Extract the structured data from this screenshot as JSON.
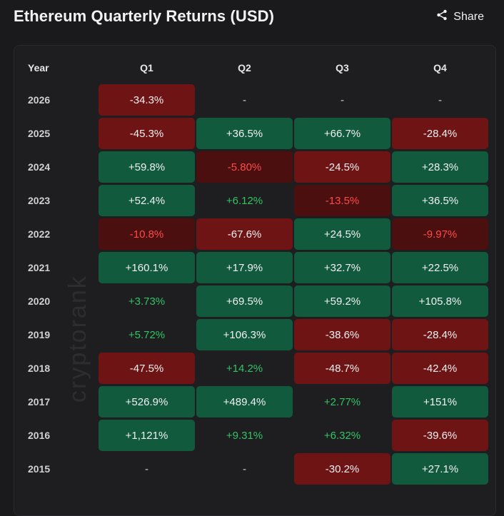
{
  "header": {
    "title": "Ethereum Quarterly Returns (USD)",
    "share_label": "Share"
  },
  "watermark": "cryptorank",
  "chart_data": {
    "type": "table",
    "columns": [
      "Year",
      "Q1",
      "Q2",
      "Q3",
      "Q4"
    ],
    "rows": [
      {
        "year": "2026",
        "cells": [
          {
            "text": "-34.3%",
            "value": -34.3,
            "style": "neg-strong"
          },
          {
            "text": "-",
            "value": null,
            "style": "empty"
          },
          {
            "text": "-",
            "value": null,
            "style": "empty"
          },
          {
            "text": "-",
            "value": null,
            "style": "empty"
          }
        ]
      },
      {
        "year": "2025",
        "cells": [
          {
            "text": "-45.3%",
            "value": -45.3,
            "style": "neg-strong"
          },
          {
            "text": "+36.5%",
            "value": 36.5,
            "style": "pos-strong"
          },
          {
            "text": "+66.7%",
            "value": 66.7,
            "style": "pos-strong"
          },
          {
            "text": "-28.4%",
            "value": -28.4,
            "style": "neg-strong"
          }
        ]
      },
      {
        "year": "2024",
        "cells": [
          {
            "text": "+59.8%",
            "value": 59.8,
            "style": "pos-strong"
          },
          {
            "text": "-5.80%",
            "value": -5.8,
            "style": "neg-mid"
          },
          {
            "text": "-24.5%",
            "value": -24.5,
            "style": "neg-strong"
          },
          {
            "text": "+28.3%",
            "value": 28.3,
            "style": "pos-strong"
          }
        ]
      },
      {
        "year": "2023",
        "cells": [
          {
            "text": "+52.4%",
            "value": 52.4,
            "style": "pos-strong"
          },
          {
            "text": "+6.12%",
            "value": 6.12,
            "style": "pos-weak"
          },
          {
            "text": "-13.5%",
            "value": -13.5,
            "style": "neg-mid"
          },
          {
            "text": "+36.5%",
            "value": 36.5,
            "style": "pos-strong"
          }
        ]
      },
      {
        "year": "2022",
        "cells": [
          {
            "text": "-10.8%",
            "value": -10.8,
            "style": "neg-mid"
          },
          {
            "text": "-67.6%",
            "value": -67.6,
            "style": "neg-strong"
          },
          {
            "text": "+24.5%",
            "value": 24.5,
            "style": "pos-strong"
          },
          {
            "text": "-9.97%",
            "value": -9.97,
            "style": "neg-mid"
          }
        ]
      },
      {
        "year": "2021",
        "cells": [
          {
            "text": "+160.1%",
            "value": 160.1,
            "style": "pos-strong"
          },
          {
            "text": "+17.9%",
            "value": 17.9,
            "style": "pos-strong"
          },
          {
            "text": "+32.7%",
            "value": 32.7,
            "style": "pos-strong"
          },
          {
            "text": "+22.5%",
            "value": 22.5,
            "style": "pos-strong"
          }
        ]
      },
      {
        "year": "2020",
        "cells": [
          {
            "text": "+3.73%",
            "value": 3.73,
            "style": "pos-weak"
          },
          {
            "text": "+69.5%",
            "value": 69.5,
            "style": "pos-strong"
          },
          {
            "text": "+59.2%",
            "value": 59.2,
            "style": "pos-strong"
          },
          {
            "text": "+105.8%",
            "value": 105.8,
            "style": "pos-strong"
          }
        ]
      },
      {
        "year": "2019",
        "cells": [
          {
            "text": "+5.72%",
            "value": 5.72,
            "style": "pos-weak"
          },
          {
            "text": "+106.3%",
            "value": 106.3,
            "style": "pos-strong"
          },
          {
            "text": "-38.6%",
            "value": -38.6,
            "style": "neg-strong"
          },
          {
            "text": "-28.4%",
            "value": -28.4,
            "style": "neg-strong"
          }
        ]
      },
      {
        "year": "2018",
        "cells": [
          {
            "text": "-47.5%",
            "value": -47.5,
            "style": "neg-strong"
          },
          {
            "text": "+14.2%",
            "value": 14.2,
            "style": "pos-weak"
          },
          {
            "text": "-48.7%",
            "value": -48.7,
            "style": "neg-strong"
          },
          {
            "text": "-42.4%",
            "value": -42.4,
            "style": "neg-strong"
          }
        ]
      },
      {
        "year": "2017",
        "cells": [
          {
            "text": "+526.9%",
            "value": 526.9,
            "style": "pos-strong"
          },
          {
            "text": "+489.4%",
            "value": 489.4,
            "style": "pos-strong"
          },
          {
            "text": "+2.77%",
            "value": 2.77,
            "style": "pos-weak"
          },
          {
            "text": "+151%",
            "value": 151,
            "style": "pos-strong"
          }
        ]
      },
      {
        "year": "2016",
        "cells": [
          {
            "text": "+1,121%",
            "value": 1121,
            "style": "pos-strong"
          },
          {
            "text": "+9.31%",
            "value": 9.31,
            "style": "pos-weak"
          },
          {
            "text": "+6.32%",
            "value": 6.32,
            "style": "pos-weak"
          },
          {
            "text": "-39.6%",
            "value": -39.6,
            "style": "neg-strong"
          }
        ]
      },
      {
        "year": "2015",
        "cells": [
          {
            "text": "-",
            "value": null,
            "style": "empty"
          },
          {
            "text": "-",
            "value": null,
            "style": "empty"
          },
          {
            "text": "-30.2%",
            "value": -30.2,
            "style": "neg-strong"
          },
          {
            "text": "+27.1%",
            "value": 27.1,
            "style": "pos-strong"
          }
        ]
      }
    ]
  },
  "colors": {
    "positive_cell": "#115a3e",
    "negative_cell": "#6f1414",
    "negative_mid_cell": "#4b0f0f",
    "positive_text": "#30c463",
    "negative_text": "#ff4a4a"
  }
}
